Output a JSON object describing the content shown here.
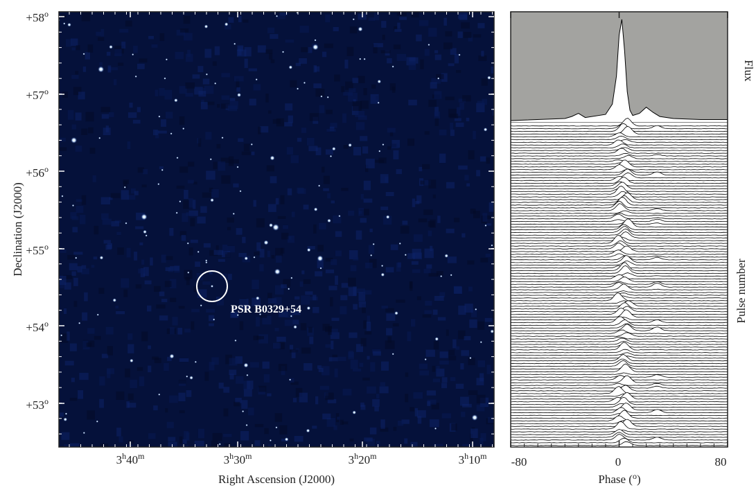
{
  "chart_data": [
    {
      "type": "heatmap",
      "title": "",
      "xlabel": "Right Ascension (J2000)",
      "ylabel": "Declination (J2000)",
      "x_ticks": [
        {
          "h": "3",
          "m": "40"
        },
        {
          "h": "3",
          "m": "30"
        },
        {
          "h": "3",
          "m": "20"
        },
        {
          "h": "3",
          "m": "10"
        }
      ],
      "y_ticks": [
        "+58",
        "+57",
        "+56",
        "+55",
        "+54",
        "+53"
      ],
      "colors": {
        "background": "#05113a",
        "source": "#cfe6ff",
        "marker": "#ffffff"
      },
      "marked_source": {
        "label": "PSR B0329+54",
        "ra_min": 212.6,
        "dec": 54.5
      }
    },
    {
      "type": "line",
      "title": "",
      "xlabel": "Phase (o)",
      "xlabel_main": "Phase (",
      "xlabel_unit": "o",
      "xlabel_close": ")",
      "top_label": "Flux",
      "side_label": "Pulse number",
      "xlim": [
        -80,
        80
      ],
      "x_ticks": [
        "-80",
        "0",
        "80"
      ],
      "colors": {
        "profile_background": "#a3a3a0",
        "trace_fill": "#ffffff",
        "trace_line": "#000000"
      },
      "profile": {
        "x": [
          -80,
          -40,
          -35,
          -30,
          -25,
          -10,
          -5,
          -2,
          0,
          2,
          4,
          6,
          8,
          10,
          15,
          20,
          25,
          30,
          40,
          60,
          80
        ],
        "y": [
          0.02,
          0.04,
          0.06,
          0.09,
          0.05,
          0.08,
          0.18,
          0.45,
          0.85,
          1.0,
          0.7,
          0.3,
          0.12,
          0.07,
          0.09,
          0.15,
          0.1,
          0.06,
          0.04,
          0.03,
          0.03
        ]
      }
    }
  ]
}
